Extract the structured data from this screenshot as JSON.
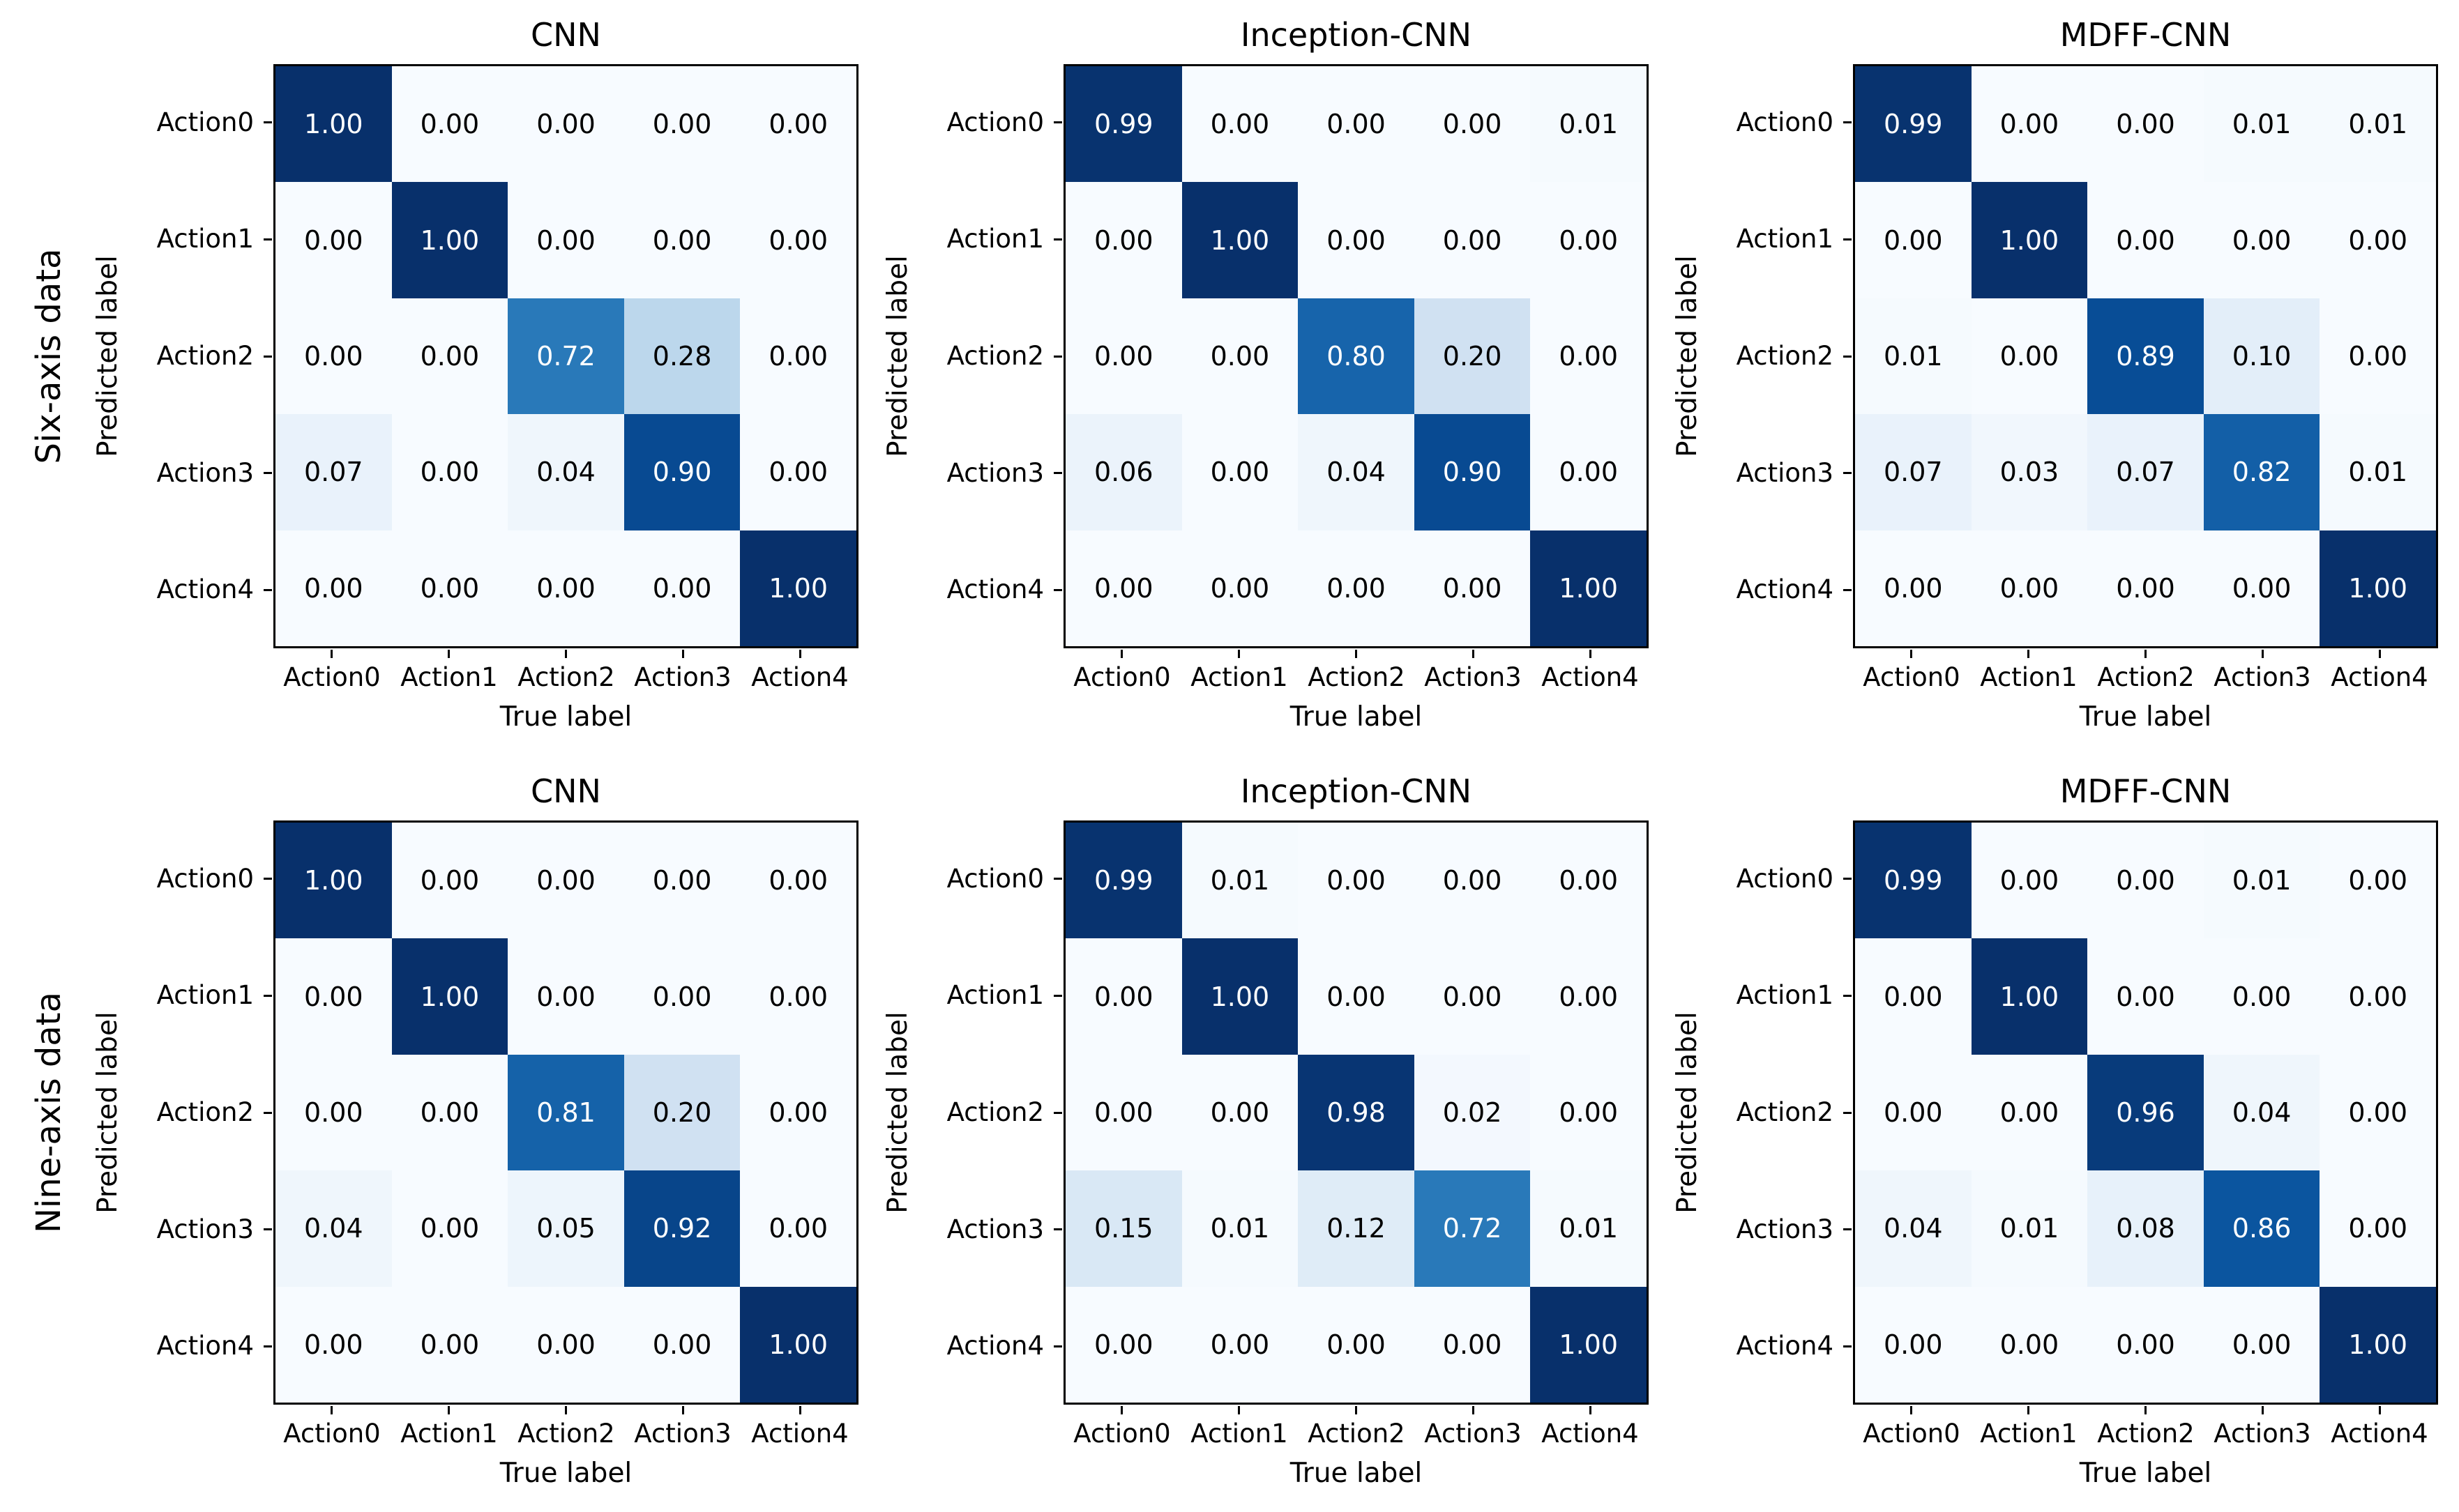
{
  "figure": {
    "background": "#ffffff",
    "text_color": "#000000"
  },
  "chart_data": {
    "type": "heatmap",
    "subtype": "confusion-matrix-grid",
    "grid": "2 rows x 3 columns of confusion matrices",
    "colormap_name": "Blues",
    "colormap_anchors": [
      {
        "pos": 0.0,
        "hex": "#f7fbff"
      },
      {
        "pos": 0.125,
        "hex": "#deebf7"
      },
      {
        "pos": 0.25,
        "hex": "#c6dbef"
      },
      {
        "pos": 0.375,
        "hex": "#9ecae1"
      },
      {
        "pos": 0.5,
        "hex": "#6baed6"
      },
      {
        "pos": 0.625,
        "hex": "#4292c6"
      },
      {
        "pos": 0.75,
        "hex": "#2171b5"
      },
      {
        "pos": 0.875,
        "hex": "#08519c"
      },
      {
        "pos": 1.0,
        "hex": "#08306b"
      }
    ],
    "value_range": [
      0,
      1
    ],
    "value_format_decimals": 2,
    "text_color_threshold": 0.5,
    "cell_text_color_high": "#ffffff",
    "cell_text_color_low": "#000000",
    "classes": [
      "Action0",
      "Action1",
      "Action2",
      "Action3",
      "Action4"
    ],
    "xlabel": "True label",
    "ylabel": "Predicted label",
    "rows": [
      {
        "row_label": "Six-axis data",
        "panels": [
          {
            "title": "CNN",
            "matrix": [
              [
                1.0,
                0.0,
                0.0,
                0.0,
                0.0
              ],
              [
                0.0,
                1.0,
                0.0,
                0.0,
                0.0
              ],
              [
                0.0,
                0.0,
                0.72,
                0.28,
                0.0
              ],
              [
                0.07,
                0.0,
                0.04,
                0.9,
                0.0
              ],
              [
                0.0,
                0.0,
                0.0,
                0.0,
                1.0
              ]
            ]
          },
          {
            "title": "Inception-CNN",
            "matrix": [
              [
                0.99,
                0.0,
                0.0,
                0.0,
                0.01
              ],
              [
                0.0,
                1.0,
                0.0,
                0.0,
                0.0
              ],
              [
                0.0,
                0.0,
                0.8,
                0.2,
                0.0
              ],
              [
                0.06,
                0.0,
                0.04,
                0.9,
                0.0
              ],
              [
                0.0,
                0.0,
                0.0,
                0.0,
                1.0
              ]
            ]
          },
          {
            "title": "MDFF-CNN",
            "matrix": [
              [
                0.99,
                0.0,
                0.0,
                0.01,
                0.01
              ],
              [
                0.0,
                1.0,
                0.0,
                0.0,
                0.0
              ],
              [
                0.01,
                0.0,
                0.89,
                0.1,
                0.0
              ],
              [
                0.07,
                0.03,
                0.07,
                0.82,
                0.01
              ],
              [
                0.0,
                0.0,
                0.0,
                0.0,
                1.0
              ]
            ]
          }
        ]
      },
      {
        "row_label": "Nine-axis data",
        "panels": [
          {
            "title": "CNN",
            "matrix": [
              [
                1.0,
                0.0,
                0.0,
                0.0,
                0.0
              ],
              [
                0.0,
                1.0,
                0.0,
                0.0,
                0.0
              ],
              [
                0.0,
                0.0,
                0.81,
                0.2,
                0.0
              ],
              [
                0.04,
                0.0,
                0.05,
                0.92,
                0.0
              ],
              [
                0.0,
                0.0,
                0.0,
                0.0,
                1.0
              ]
            ]
          },
          {
            "title": "Inception-CNN",
            "matrix": [
              [
                0.99,
                0.01,
                0.0,
                0.0,
                0.0
              ],
              [
                0.0,
                1.0,
                0.0,
                0.0,
                0.0
              ],
              [
                0.0,
                0.0,
                0.98,
                0.02,
                0.0
              ],
              [
                0.15,
                0.01,
                0.12,
                0.72,
                0.01
              ],
              [
                0.0,
                0.0,
                0.0,
                0.0,
                1.0
              ]
            ]
          },
          {
            "title": "MDFF-CNN",
            "matrix": [
              [
                0.99,
                0.0,
                0.0,
                0.01,
                0.0
              ],
              [
                0.0,
                1.0,
                0.0,
                0.0,
                0.0
              ],
              [
                0.0,
                0.0,
                0.96,
                0.04,
                0.0
              ],
              [
                0.04,
                0.01,
                0.08,
                0.86,
                0.0
              ],
              [
                0.0,
                0.0,
                0.0,
                0.0,
                1.0
              ]
            ]
          }
        ]
      }
    ]
  }
}
